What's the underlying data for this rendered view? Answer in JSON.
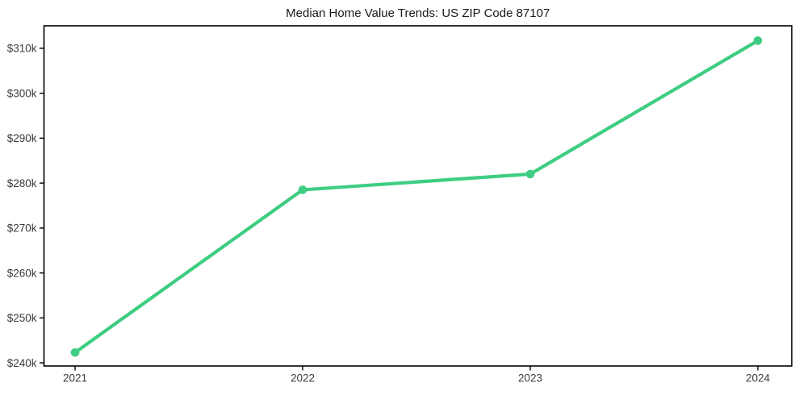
{
  "page": {
    "background": "#ffffff"
  },
  "chart_data": {
    "type": "line",
    "title": "Median Home Value Trends: US ZIP Code 87107",
    "categories": [
      "2021",
      "2022",
      "2023",
      "2024"
    ],
    "values": [
      242300,
      278500,
      282000,
      311700
    ],
    "xlabel": "",
    "ylabel": "",
    "x_tick_labels": [
      "2021",
      "2022",
      "2023",
      "2024"
    ],
    "y_ticks": [
      {
        "value": 240000,
        "label": "$240k"
      },
      {
        "value": 250000,
        "label": "$250k"
      },
      {
        "value": 260000,
        "label": "$260k"
      },
      {
        "value": 270000,
        "label": "$270k"
      },
      {
        "value": 280000,
        "label": "$280k"
      },
      {
        "value": 290000,
        "label": "$290k"
      },
      {
        "value": 300000,
        "label": "$300k"
      },
      {
        "value": 310000,
        "label": "$310k"
      }
    ],
    "ylim": [
      239300,
      315000
    ],
    "grid": false,
    "legend": false,
    "marker": "circle",
    "line_color": "#3ecd82",
    "axis_color": "#000000",
    "tick_label_color": "#3b3b3b",
    "title_color": "#1a1a1a"
  }
}
